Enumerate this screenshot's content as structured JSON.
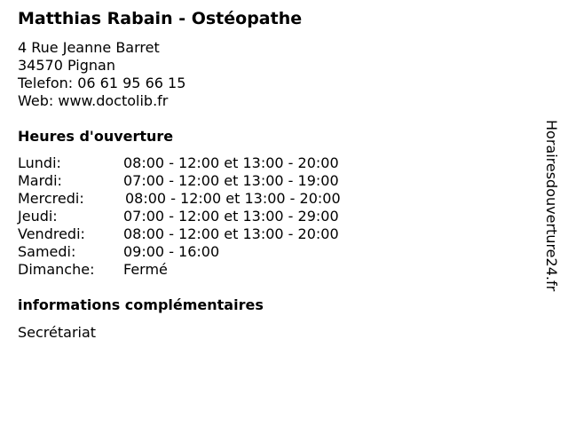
{
  "title": "Matthias Rabain - Ostéopathe",
  "address": {
    "street": "4 Rue Jeanne Barret",
    "city": "34570 Pignan",
    "phone": "Telefon: 06 61 95 66 15",
    "web": "Web: www.doctolib.fr"
  },
  "hours_heading": "Heures d'ouverture",
  "hours": [
    {
      "day": "Lundi:",
      "time": "08:00 - 12:00 et 13:00 - 20:00"
    },
    {
      "day": "Mardi:",
      "time": "07:00 - 12:00 et 13:00 - 19:00"
    },
    {
      "day": "Mercredi:",
      "time": "08:00 - 12:00 et 13:00 - 20:00"
    },
    {
      "day": "Jeudi:",
      "time": "07:00 - 12:00 et 13:00 - 29:00"
    },
    {
      "day": "Vendredi:",
      "time": "08:00 - 12:00 et 13:00 - 20:00"
    },
    {
      "day": "Samedi:",
      "time": "09:00 - 16:00"
    },
    {
      "day": "Dimanche:",
      "time": "Fermé"
    }
  ],
  "info_heading": "informations complémentaires",
  "info_text": "Secrétariat",
  "watermark": "Horairesdouverture24.fr"
}
